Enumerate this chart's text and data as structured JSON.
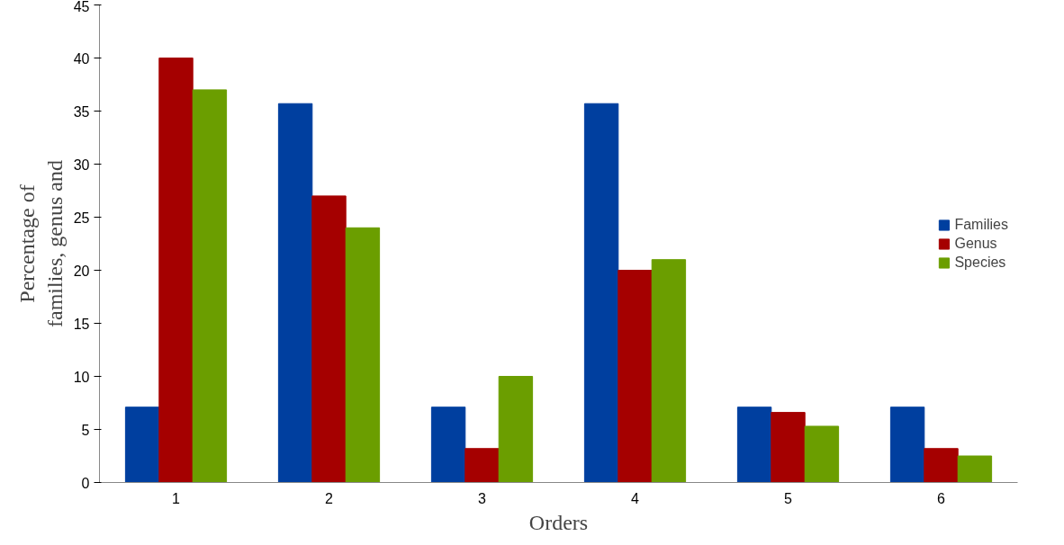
{
  "chart_data": {
    "type": "bar",
    "xlabel": "Orders",
    "ylabel": "Percentage of\nfamilies, genus and",
    "categories": [
      "1",
      "2",
      "3",
      "4",
      "5",
      "6"
    ],
    "series": [
      {
        "name": "Families",
        "color": "#003f9f",
        "values": [
          7.1,
          35.7,
          7.1,
          35.7,
          7.1,
          7.1
        ]
      },
      {
        "name": "Genus",
        "color": "#a50000",
        "values": [
          40.0,
          27.0,
          3.2,
          20.0,
          6.6,
          3.2
        ]
      },
      {
        "name": "Species",
        "color": "#6b9e00",
        "values": [
          37.0,
          24.0,
          10.0,
          21.0,
          5.3,
          2.5
        ]
      }
    ],
    "ylim": [
      0,
      45
    ],
    "yticks": [
      0,
      5,
      10,
      15,
      20,
      25,
      30,
      35,
      40,
      45
    ],
    "grid": false,
    "legend": "right"
  }
}
